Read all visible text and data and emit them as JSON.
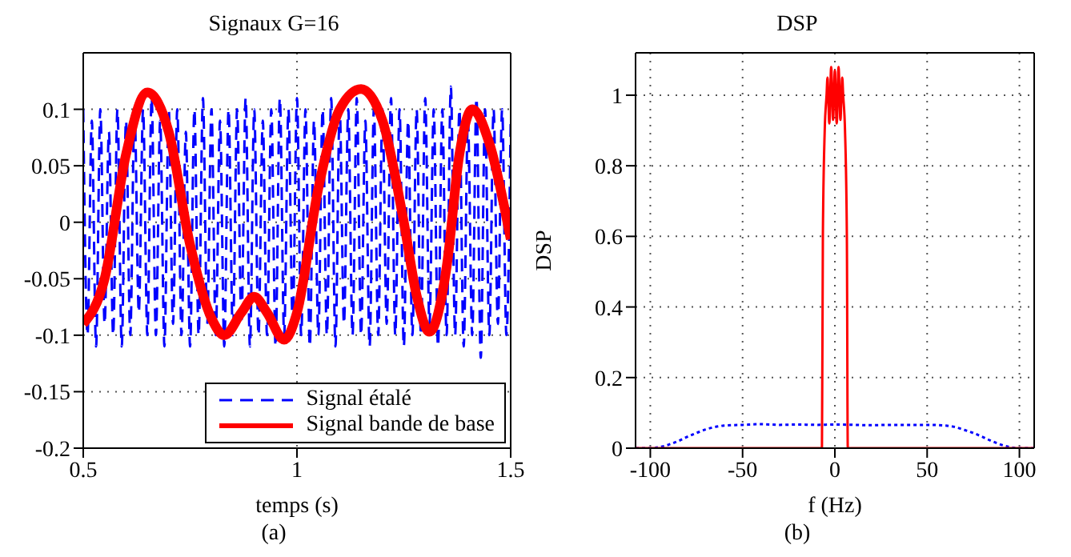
{
  "chart_data": [
    {
      "type": "line",
      "title": "Signaux G=16",
      "xlabel": "temps (s)",
      "annotations": [
        "(a)"
      ],
      "xlim": [
        0.5,
        1.5
      ],
      "xticks": [
        0.5,
        1,
        1.5
      ],
      "ylim": [
        -0.2,
        0.15
      ],
      "yticks": [
        -0.2,
        -0.15,
        -0.1,
        -0.05,
        0,
        0.05,
        0.1
      ],
      "grid": true,
      "legend": "bottom right",
      "series": [
        {
          "name": "Signal étalé",
          "color": "#0000ff",
          "line_style": "dashed",
          "x": [
            0.5,
            0.51,
            0.52,
            0.53,
            0.54,
            0.55,
            0.56,
            0.57,
            0.58,
            0.59,
            0.6,
            0.61,
            0.62,
            0.63,
            0.64,
            0.65,
            0.66,
            0.67,
            0.68,
            0.69,
            0.7,
            0.71,
            0.72,
            0.73,
            0.74,
            0.75,
            0.76,
            0.77,
            0.78,
            0.79,
            0.8,
            0.81,
            0.82,
            0.83,
            0.84,
            0.85,
            0.86,
            0.87,
            0.88,
            0.89,
            0.9,
            0.91,
            0.92,
            0.93,
            0.94,
            0.95,
            0.96,
            0.97,
            0.98,
            0.99,
            1.0,
            1.01,
            1.02,
            1.03,
            1.04,
            1.05,
            1.06,
            1.07,
            1.08,
            1.09,
            1.1,
            1.11,
            1.12,
            1.13,
            1.14,
            1.15,
            1.16,
            1.17,
            1.18,
            1.19,
            1.2,
            1.21,
            1.22,
            1.23,
            1.24,
            1.25,
            1.26,
            1.27,
            1.28,
            1.29,
            1.3,
            1.31,
            1.32,
            1.33,
            1.34,
            1.35,
            1.36,
            1.37,
            1.38,
            1.39,
            1.4,
            1.41,
            1.42,
            1.43,
            1.44,
            1.45,
            1.46,
            1.47,
            1.48,
            1.49,
            1.5
          ],
          "values": [
            0.1,
            -0.1,
            0.09,
            -0.11,
            0.1,
            -0.09,
            0.08,
            -0.1,
            0.1,
            -0.11,
            0.09,
            -0.1,
            0.1,
            -0.08,
            0.1,
            -0.1,
            0.11,
            -0.1,
            0.09,
            -0.11,
            0.1,
            -0.09,
            0.1,
            -0.1,
            0.08,
            -0.11,
            0.1,
            -0.1,
            0.11,
            -0.09,
            0.1,
            -0.1,
            0.09,
            -0.11,
            0.1,
            -0.1,
            0.1,
            -0.09,
            0.11,
            -0.11,
            0.1,
            -0.1,
            0.09,
            -0.1,
            0.1,
            -0.11,
            0.11,
            -0.1,
            0.1,
            -0.09,
            0.11,
            -0.1,
            0.1,
            -0.11,
            0.09,
            -0.1,
            0.1,
            -0.1,
            0.11,
            -0.11,
            0.1,
            -0.09,
            0.1,
            -0.1,
            0.11,
            -0.1,
            0.09,
            -0.11,
            0.1,
            -0.1,
            0.1,
            -0.09,
            0.11,
            -0.1,
            0.1,
            -0.11,
            0.09,
            -0.1,
            0.1,
            -0.1,
            0.11,
            -0.09,
            0.1,
            -0.11,
            0.1,
            -0.1,
            0.12,
            -0.1,
            0.1,
            -0.11,
            0.09,
            -0.1,
            0.11,
            -0.12,
            0.1,
            -0.1,
            0.1,
            -0.09,
            0.1,
            -0.1,
            0.09
          ]
        },
        {
          "name": "Signal bande de base",
          "color": "#ff0000",
          "line_style": "solid",
          "x": [
            0.5,
            0.55,
            0.6,
            0.65,
            0.7,
            0.75,
            0.8,
            0.83,
            0.87,
            0.9,
            0.93,
            0.97,
            1.0,
            1.05,
            1.1,
            1.15,
            1.2,
            1.25,
            1.28,
            1.31,
            1.35,
            1.38,
            1.41,
            1.45,
            1.5
          ],
          "values": [
            -0.09,
            -0.05,
            0.06,
            0.115,
            0.08,
            -0.02,
            -0.085,
            -0.1,
            -0.08,
            -0.066,
            -0.08,
            -0.104,
            -0.08,
            0.03,
            0.1,
            0.118,
            0.09,
            0.0,
            -0.065,
            -0.097,
            -0.04,
            0.06,
            0.1,
            0.07,
            -0.015
          ]
        }
      ]
    },
    {
      "type": "line",
      "title": "DSP",
      "xlabel": "f (Hz)",
      "ylabel": "DSP",
      "annotations": [
        "(b)"
      ],
      "xlim": [
        -108,
        108
      ],
      "xticks": [
        -100,
        -50,
        0,
        50,
        100
      ],
      "ylim": [
        0,
        1.12
      ],
      "yticks": [
        0,
        0.2,
        0.4,
        0.6,
        0.8,
        1
      ],
      "grid": true,
      "series": [
        {
          "color": "#0000ff",
          "line_style": "dotted",
          "x": [
            -108,
            -100,
            -95,
            -90,
            -85,
            -80,
            -75,
            -70,
            -65,
            -60,
            -50,
            -40,
            -30,
            -20,
            -10,
            0,
            10,
            20,
            30,
            40,
            50,
            60,
            65,
            70,
            75,
            80,
            85,
            90,
            95,
            100,
            108
          ],
          "values": [
            0,
            0,
            0.003,
            0.01,
            0.02,
            0.032,
            0.043,
            0.053,
            0.06,
            0.064,
            0.066,
            0.068,
            0.066,
            0.067,
            0.066,
            0.067,
            0.066,
            0.065,
            0.066,
            0.066,
            0.066,
            0.064,
            0.06,
            0.052,
            0.043,
            0.032,
            0.02,
            0.01,
            0.003,
            0,
            0
          ]
        },
        {
          "color": "#ff0000",
          "line_style": "solid",
          "x": [
            -108,
            -7,
            -6.5,
            -5.5,
            -4.5,
            -4,
            -3,
            -2,
            -1,
            0,
            1,
            2,
            3,
            4,
            4.5,
            5.5,
            6.5,
            7,
            108
          ],
          "values": [
            0,
            0,
            0.6,
            0.9,
            1.0,
            1.05,
            0.92,
            1.08,
            0.93,
            1.07,
            0.92,
            1.08,
            0.93,
            1.05,
            1.0,
            0.9,
            0.6,
            0,
            0
          ]
        }
      ]
    }
  ]
}
